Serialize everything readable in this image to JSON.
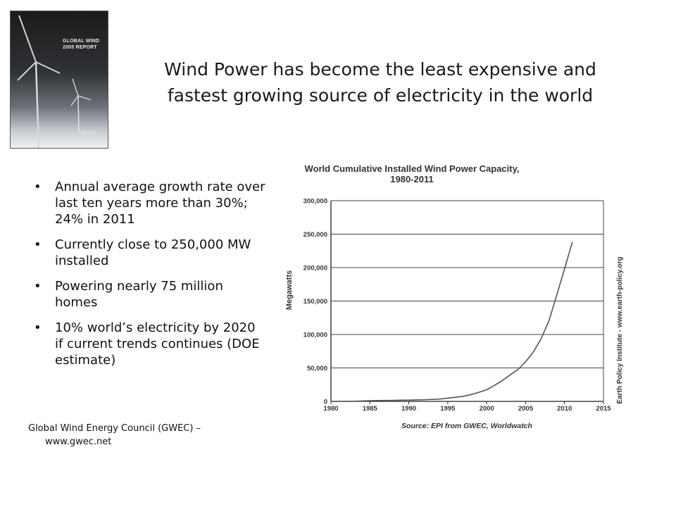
{
  "slide": {
    "title_line1": "Wind Power has become the least expensive and",
    "title_line2": "fastest growing source of electricity in the world",
    "bullets": [
      "Annual average growth rate over last ten years more than 30%; 24% in 2011",
      "Currently close to 250,000 MW installed",
      "Powering nearly 75 million homes",
      "10% world’s electricity by 2020 if current trends continues (DOE estimate)"
    ],
    "bullet_symbol": "•",
    "source_line1": "Global Wind Energy Council (GWEC) –",
    "source_line2": "www.gwec.net"
  },
  "cover": {
    "title": "GLOBAL WIND 2005 REPORT",
    "logo": "GWEC"
  },
  "chart_data": {
    "type": "line",
    "title": "World Cumulative Installed Wind Power Capacity, 1980-2011",
    "title_line1": "World Cumulative Installed Wind Power Capacity,",
    "title_line2": "1980-2011",
    "ylabel": "Megawatts",
    "xlabel": "",
    "source": "Source: EPI from GWEC, Worldwatch",
    "side_note": "Earth Policy Institute - www.earth-policy.org",
    "xlim": [
      1980,
      2015
    ],
    "ylim": [
      0,
      300000
    ],
    "x_ticks": [
      "1980",
      "1985",
      "1990",
      "1995",
      "2000",
      "2005",
      "2010",
      "2015"
    ],
    "y_ticks": [
      "0",
      "50,000",
      "100,000",
      "150,000",
      "200,000",
      "250,000",
      "300,000"
    ],
    "grid": "horizontal",
    "line_color": "#555555",
    "x": [
      1980,
      1981,
      1982,
      1983,
      1984,
      1985,
      1986,
      1987,
      1988,
      1989,
      1990,
      1991,
      1992,
      1993,
      1994,
      1995,
      1996,
      1997,
      1998,
      1999,
      2000,
      2001,
      2002,
      2003,
      2004,
      2005,
      2006,
      2007,
      2008,
      2009,
      2010,
      2011
    ],
    "y": [
      10,
      25,
      90,
      210,
      600,
      1020,
      1270,
      1450,
      1580,
      1730,
      1930,
      2170,
      2510,
      2990,
      3490,
      4780,
      6100,
      7600,
      10200,
      13600,
      17400,
      23900,
      31100,
      39400,
      47600,
      59100,
      74000,
      93900,
      120600,
      159000,
      198000,
      238000
    ]
  }
}
